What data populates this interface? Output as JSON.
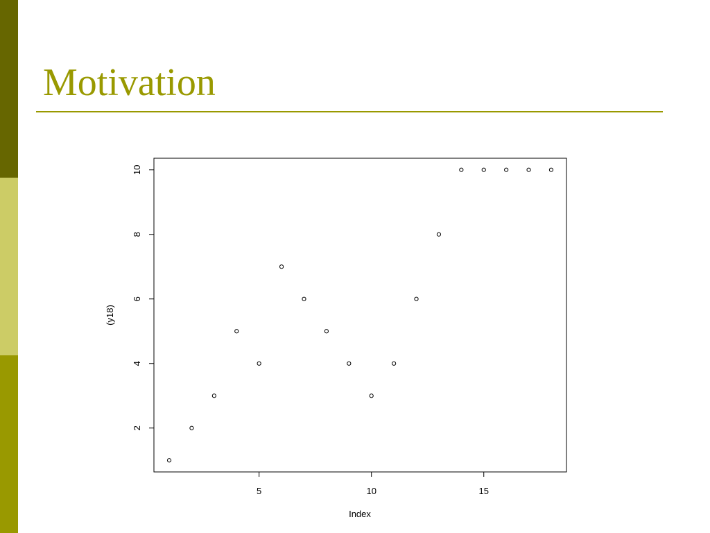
{
  "slide": {
    "title": "Motivation"
  },
  "chart_data": {
    "type": "scatter",
    "x": [
      1,
      2,
      3,
      4,
      5,
      6,
      7,
      8,
      9,
      10,
      11,
      12,
      13,
      14,
      15,
      16,
      17,
      18
    ],
    "values": [
      1,
      2,
      3,
      5,
      4,
      7,
      6,
      5,
      4,
      3,
      4,
      6,
      8,
      10,
      10,
      10,
      10,
      10
    ],
    "color": "#000000",
    "x_label": "Index",
    "y_label": "(y18)",
    "xlim": [
      0.32,
      18.68
    ],
    "xticks": [
      5,
      10,
      15
    ],
    "ylim": [
      0.64,
      10.36
    ],
    "yticks": [
      2,
      4,
      6,
      8,
      10
    ]
  }
}
